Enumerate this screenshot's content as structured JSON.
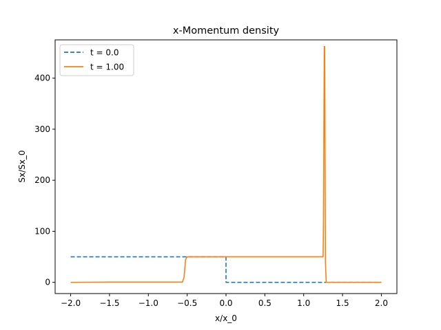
{
  "chart_data": {
    "type": "line",
    "title": "x-Momentum density",
    "xlabel": "x/x_0",
    "ylabel": "Sx/Sx_0",
    "xlim": [
      -2.2,
      2.2
    ],
    "ylim": [
      -22,
      475
    ],
    "xticks": [
      -2.0,
      -1.5,
      -1.0,
      -0.5,
      0.0,
      0.5,
      1.0,
      1.5,
      2.0
    ],
    "xtick_labels": [
      "−2.0",
      "−1.5",
      "−1.0",
      "−0.5",
      "0.0",
      "0.5",
      "1.0",
      "1.5",
      "2.0"
    ],
    "yticks": [
      0,
      100,
      200,
      300,
      400
    ],
    "ytick_labels": [
      "0",
      "100",
      "200",
      "300",
      "400"
    ],
    "grid": false,
    "legend_position": "top-left",
    "series": [
      {
        "name": "t = 0.0",
        "color": "#1f77b4",
        "style": "dashed",
        "x": [
          -2.0,
          0.0,
          0.0,
          2.0
        ],
        "y": [
          50,
          50,
          0,
          0
        ]
      },
      {
        "name": "t = 1.00",
        "color": "#ff7f0e",
        "style": "solid",
        "x": [
          -2.0,
          -1.5,
          -0.56,
          -0.54,
          -0.52,
          -0.5,
          0.0,
          1.0,
          1.25,
          1.255,
          1.26,
          1.265,
          1.27,
          1.275,
          1.28,
          1.29,
          1.5,
          2.0
        ],
        "y": [
          0,
          0.5,
          0.5,
          10,
          45,
          50,
          50,
          50,
          50,
          120,
          300,
          462,
          462,
          250,
          40,
          0,
          0,
          0
        ]
      }
    ]
  }
}
